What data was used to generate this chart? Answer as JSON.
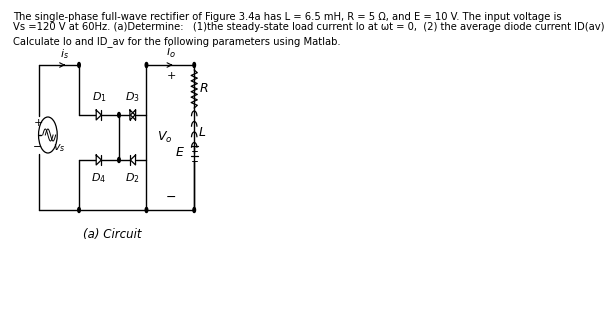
{
  "line1": "The single-phase full-wave rectifier of Figure 3.4a has L = 6.5 mH, R = 5 Ω, and E = 10 V. The input voltage is",
  "line2": "Vs =120 V at 60Hz. (a)Determine:   (1)the steady-state load current Io at ωt = 0,  (2) the average diode current ID(av)",
  "line3": "Calculate Io and ID_av for the following parameters using Matlab.",
  "caption": "(a) Circuit",
  "bg_color": "#ffffff",
  "text_color": "#000000",
  "font_size": 7.2
}
